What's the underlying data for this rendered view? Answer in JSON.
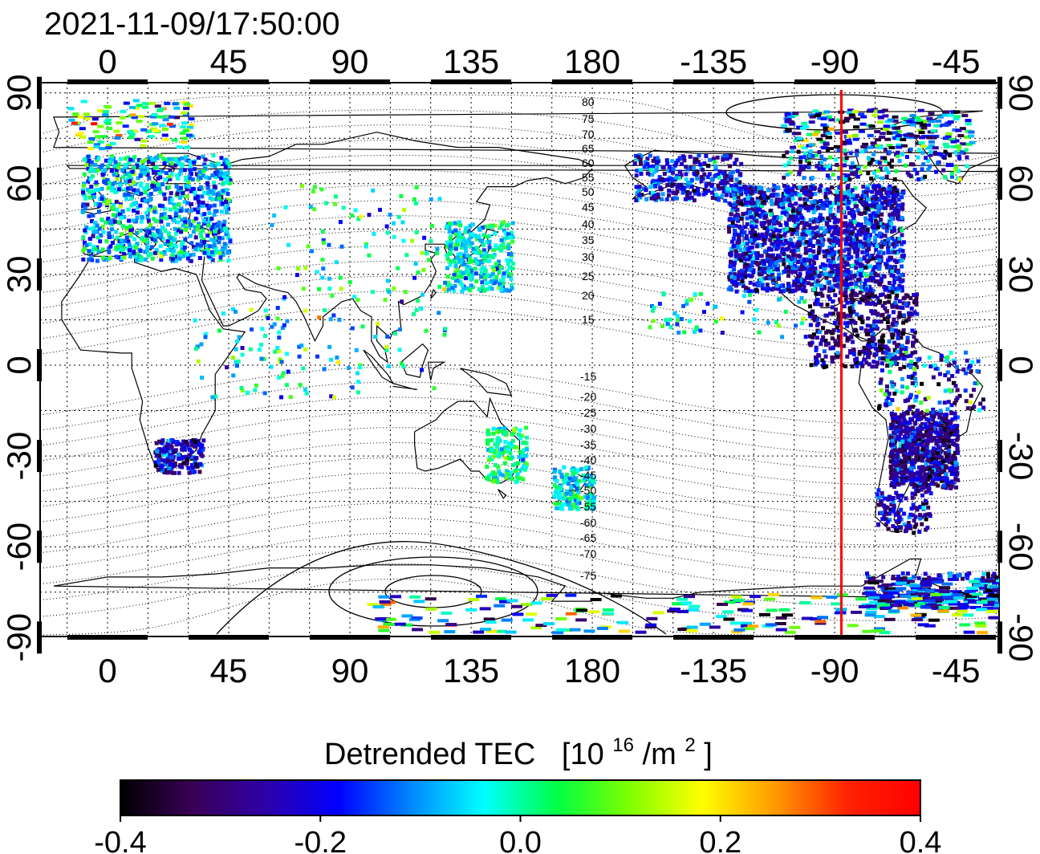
{
  "title": "2021-11-09/17:50:00",
  "map": {
    "lon_ticks_top": [
      "0",
      "45",
      "90",
      "135",
      "180",
      "-135",
      "-90",
      "-45"
    ],
    "lon_ticks_bottom": [
      "0",
      "45",
      "90",
      "135",
      "180",
      "-135",
      "-90",
      "-45"
    ],
    "lat_ticks_left": [
      "90",
      "60",
      "30",
      "0",
      "-30",
      "-60",
      "-90"
    ],
    "lat_ticks_right": [
      "90",
      "60",
      "30",
      "0",
      "-30",
      "-60",
      "-90"
    ],
    "marker_longitude": -87.5,
    "marker_color": "#ff0000",
    "contour_labels_north": [
      "80",
      "75",
      "70",
      "65",
      "60",
      "55",
      "50",
      "45",
      "40",
      "35",
      "30",
      "25",
      "20",
      "15"
    ],
    "contour_labels_south": [
      "-15",
      "-20",
      "-25",
      "-30",
      "-35",
      "-40",
      "-45",
      "-50",
      "-55",
      "-60",
      "-65",
      "-70",
      "-75"
    ]
  },
  "colorbar": {
    "label_main": "Detrended TEC",
    "label_unit_prefix": "[10",
    "label_unit_exp": "16",
    "label_unit_mid": "/m",
    "label_unit_exp2": "2",
    "label_unit_suffix": "]",
    "ticks": [
      "-0.4",
      "-0.2",
      "0.0",
      "0.2",
      "0.4"
    ],
    "min": -0.4,
    "max": 0.4,
    "colors": [
      "#000000",
      "#3a0057",
      "#2e00a8",
      "#0000ff",
      "#0088ff",
      "#00ffff",
      "#00ff44",
      "#7fff00",
      "#ffff00",
      "#ff9900",
      "#ff2200",
      "#ff0000"
    ]
  }
}
